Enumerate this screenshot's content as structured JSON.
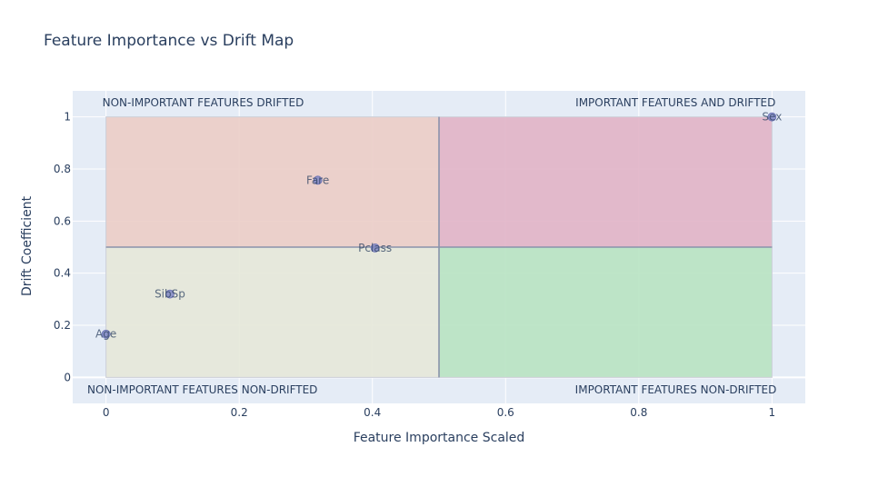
{
  "chart_data": {
    "type": "scatter",
    "title": "Feature Importance vs Drift Map",
    "xlabel": "Feature Importance Scaled",
    "ylabel": "Drift Coefficient",
    "xlim": [
      -0.05,
      1.05
    ],
    "ylim": [
      -0.1,
      1.1
    ],
    "x_ticks": [
      0,
      0.2,
      0.4,
      0.6,
      0.8,
      1
    ],
    "x_tick_labels": [
      "0",
      "0.2",
      "0.4",
      "0.6",
      "0.8",
      "1"
    ],
    "y_ticks": [
      0,
      0.2,
      0.4,
      0.6,
      0.8,
      1
    ],
    "y_tick_labels": [
      "0",
      "0.2",
      "0.4",
      "0.6",
      "0.8",
      "1"
    ],
    "grid": true,
    "points": [
      {
        "label": "Sex",
        "x": 1.0,
        "y": 1.0
      },
      {
        "label": "Fare",
        "x": 0.318,
        "y": 0.757
      },
      {
        "label": "Pclass",
        "x": 0.404,
        "y": 0.497
      },
      {
        "label": "SibSp",
        "x": 0.096,
        "y": 0.32
      },
      {
        "label": "Age",
        "x": 0.0,
        "y": 0.166
      }
    ],
    "quadrants": [
      {
        "label": "NON-IMPORTANT FEATURES DRIFTED",
        "x0": 0,
        "x1": 0.5,
        "y0": 0.5,
        "y1": 1,
        "color": "#ebcdc6"
      },
      {
        "label": "IMPORTANT FEATURES AND DRIFTED",
        "x0": 0.5,
        "x1": 1,
        "y0": 0.5,
        "y1": 1,
        "color": "#e1b4c6"
      },
      {
        "label": "NON-IMPORTANT FEATURES NON-DRIFTED",
        "x0": 0,
        "x1": 0.5,
        "y0": 0,
        "y1": 0.5,
        "color": "#e5e8d9"
      },
      {
        "label": "IMPORTANT FEATURES NON-DRIFTED",
        "x0": 0.5,
        "x1": 1,
        "y0": 0,
        "y1": 0.5,
        "color": "#b8e3c2"
      }
    ],
    "colors": {
      "plot_bg": "#e5ecf6",
      "grid": "#ffffff",
      "marker": "#7f86c4",
      "divider": "#8a93ab",
      "text": "#2a3f5f"
    }
  }
}
